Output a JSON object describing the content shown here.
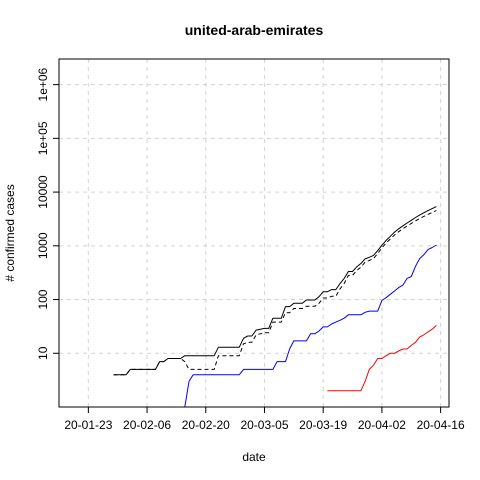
{
  "chart_data": {
    "type": "line",
    "title": "united-arab-emirates",
    "xlabel": "date",
    "ylabel": "# confirmed cases",
    "x_scale": "date",
    "y_scale": "log10",
    "xlim": [
      "2020-01-16",
      "2020-04-18"
    ],
    "ylim": [
      1,
      3000000
    ],
    "grid": true,
    "legend": null,
    "x_ticks": [
      "20-01-23",
      "20-02-06",
      "20-02-20",
      "20-03-05",
      "20-03-19",
      "20-04-02",
      "20-04-16"
    ],
    "y_ticks": [
      "10",
      "100",
      "1000",
      "10000",
      "1e+05",
      "1e+06"
    ],
    "series": [
      {
        "color": "#000000",
        "dash": "solid",
        "points": [
          [
            "2020-01-29",
            4
          ],
          [
            "2020-02-01",
            4
          ],
          [
            "2020-02-02",
            5
          ],
          [
            "2020-02-08",
            5
          ],
          [
            "2020-02-09",
            7
          ],
          [
            "2020-02-10",
            7
          ],
          [
            "2020-02-11",
            8
          ],
          [
            "2020-02-14",
            8
          ],
          [
            "2020-02-15",
            9
          ],
          [
            "2020-02-22",
            9
          ],
          [
            "2020-02-23",
            13
          ],
          [
            "2020-02-28",
            13
          ],
          [
            "2020-02-29",
            19
          ],
          [
            "2020-03-01",
            21
          ],
          [
            "2020-03-02",
            21
          ],
          [
            "2020-03-03",
            27
          ],
          [
            "2020-03-04",
            28
          ],
          [
            "2020-03-05",
            29
          ],
          [
            "2020-03-06",
            29
          ],
          [
            "2020-03-07",
            45
          ],
          [
            "2020-03-08",
            45
          ],
          [
            "2020-03-09",
            45
          ],
          [
            "2020-03-10",
            74
          ],
          [
            "2020-03-11",
            74
          ],
          [
            "2020-03-12",
            85
          ],
          [
            "2020-03-13",
            85
          ],
          [
            "2020-03-14",
            85
          ],
          [
            "2020-03-15",
            98
          ],
          [
            "2020-03-16",
            98
          ],
          [
            "2020-03-17",
            98
          ],
          [
            "2020-03-18",
            113
          ],
          [
            "2020-03-19",
            140
          ],
          [
            "2020-03-20",
            140
          ],
          [
            "2020-03-21",
            153
          ],
          [
            "2020-03-22",
            153
          ],
          [
            "2020-03-23",
            198
          ],
          [
            "2020-03-24",
            248
          ],
          [
            "2020-03-25",
            333
          ],
          [
            "2020-03-26",
            333
          ],
          [
            "2020-03-27",
            405
          ],
          [
            "2020-03-28",
            468
          ],
          [
            "2020-03-29",
            570
          ],
          [
            "2020-03-30",
            611
          ],
          [
            "2020-03-31",
            664
          ],
          [
            "2020-04-01",
            814
          ],
          [
            "2020-04-02",
            1024
          ],
          [
            "2020-04-03",
            1264
          ],
          [
            "2020-04-04",
            1505
          ],
          [
            "2020-04-05",
            1799
          ],
          [
            "2020-04-06",
            2076
          ],
          [
            "2020-04-07",
            2359
          ],
          [
            "2020-04-08",
            2659
          ],
          [
            "2020-04-09",
            2990
          ],
          [
            "2020-04-10",
            3360
          ],
          [
            "2020-04-11",
            3736
          ],
          [
            "2020-04-12",
            4123
          ],
          [
            "2020-04-13",
            4521
          ],
          [
            "2020-04-14",
            4933
          ],
          [
            "2020-04-15",
            5365
          ]
        ]
      },
      {
        "color": "#000000",
        "dash": "dashed",
        "points": [
          [
            "2020-01-29",
            4
          ],
          [
            "2020-02-01",
            4
          ],
          [
            "2020-02-02",
            5
          ],
          [
            "2020-02-08",
            5
          ],
          [
            "2020-02-09",
            7
          ],
          [
            "2020-02-10",
            7
          ],
          [
            "2020-02-11",
            8
          ],
          [
            "2020-02-14",
            8
          ],
          [
            "2020-02-15",
            7
          ],
          [
            "2020-02-16",
            5
          ],
          [
            "2020-02-22",
            5
          ],
          [
            "2020-02-23",
            9
          ],
          [
            "2020-02-28",
            9
          ],
          [
            "2020-02-29",
            15
          ],
          [
            "2020-03-01",
            16
          ],
          [
            "2020-03-02",
            16
          ],
          [
            "2020-03-03",
            22
          ],
          [
            "2020-03-04",
            23
          ],
          [
            "2020-03-05",
            24
          ],
          [
            "2020-03-06",
            24
          ],
          [
            "2020-03-07",
            38
          ],
          [
            "2020-03-08",
            38
          ],
          [
            "2020-03-09",
            38
          ],
          [
            "2020-03-10",
            57
          ],
          [
            "2020-03-11",
            57
          ],
          [
            "2020-03-12",
            68
          ],
          [
            "2020-03-13",
            68
          ],
          [
            "2020-03-14",
            68
          ],
          [
            "2020-03-15",
            75
          ],
          [
            "2020-03-16",
            75
          ],
          [
            "2020-03-17",
            75
          ],
          [
            "2020-03-18",
            85
          ],
          [
            "2020-03-19",
            107
          ],
          [
            "2020-03-20",
            107
          ],
          [
            "2020-03-21",
            115
          ],
          [
            "2020-03-22",
            115
          ],
          [
            "2020-03-23",
            158
          ],
          [
            "2020-03-24",
            200
          ],
          [
            "2020-03-25",
            281
          ],
          [
            "2020-03-26",
            281
          ],
          [
            "2020-03-27",
            345
          ],
          [
            "2020-03-28",
            402
          ],
          [
            "2020-03-29",
            495
          ],
          [
            "2020-03-30",
            535
          ],
          [
            "2020-03-31",
            580
          ],
          [
            "2020-04-01",
            720
          ],
          [
            "2020-04-02",
            910
          ],
          [
            "2020-04-03",
            1130
          ],
          [
            "2020-04-04",
            1340
          ],
          [
            "2020-04-05",
            1590
          ],
          [
            "2020-04-06",
            1830
          ],
          [
            "2020-04-07",
            2080
          ],
          [
            "2020-04-08",
            2330
          ],
          [
            "2020-04-09",
            2610
          ],
          [
            "2020-04-10",
            2910
          ],
          [
            "2020-04-11",
            3220
          ],
          [
            "2020-04-12",
            3530
          ],
          [
            "2020-04-13",
            3850
          ],
          [
            "2020-04-14",
            4180
          ],
          [
            "2020-04-15",
            4520
          ]
        ]
      },
      {
        "color": "#0000ff",
        "dash": "solid",
        "points": [
          [
            "2020-02-13",
            1
          ],
          [
            "2020-02-15",
            1
          ],
          [
            "2020-02-16",
            3
          ],
          [
            "2020-02-17",
            4
          ],
          [
            "2020-02-28",
            4
          ],
          [
            "2020-02-29",
            5
          ],
          [
            "2020-03-07",
            5
          ],
          [
            "2020-03-08",
            7
          ],
          [
            "2020-03-10",
            7
          ],
          [
            "2020-03-11",
            12
          ],
          [
            "2020-03-12",
            17
          ],
          [
            "2020-03-15",
            17
          ],
          [
            "2020-03-16",
            23
          ],
          [
            "2020-03-17",
            23
          ],
          [
            "2020-03-18",
            26
          ],
          [
            "2020-03-19",
            31
          ],
          [
            "2020-03-20",
            31
          ],
          [
            "2020-03-21",
            35
          ],
          [
            "2020-03-22",
            38
          ],
          [
            "2020-03-23",
            41
          ],
          [
            "2020-03-24",
            45
          ],
          [
            "2020-03-25",
            52
          ],
          [
            "2020-03-28",
            52
          ],
          [
            "2020-03-29",
            58
          ],
          [
            "2020-03-30",
            61
          ],
          [
            "2020-03-31",
            61
          ],
          [
            "2020-04-01",
            61
          ],
          [
            "2020-04-02",
            96
          ],
          [
            "2020-04-03",
            108
          ],
          [
            "2020-04-04",
            125
          ],
          [
            "2020-04-05",
            144
          ],
          [
            "2020-04-06",
            167
          ],
          [
            "2020-04-07",
            186
          ],
          [
            "2020-04-08",
            248
          ],
          [
            "2020-04-09",
            268
          ],
          [
            "2020-04-10",
            416
          ],
          [
            "2020-04-11",
            577
          ],
          [
            "2020-04-12",
            680
          ],
          [
            "2020-04-13",
            852
          ],
          [
            "2020-04-14",
            931
          ],
          [
            "2020-04-15",
            1034
          ]
        ]
      },
      {
        "color": "#ff0000",
        "dash": "solid",
        "points": [
          [
            "2020-03-20",
            2
          ],
          [
            "2020-03-28",
            2
          ],
          [
            "2020-03-29",
            3
          ],
          [
            "2020-03-30",
            5
          ],
          [
            "2020-03-31",
            6
          ],
          [
            "2020-04-01",
            8
          ],
          [
            "2020-04-02",
            8
          ],
          [
            "2020-04-03",
            9
          ],
          [
            "2020-04-04",
            10
          ],
          [
            "2020-04-05",
            10
          ],
          [
            "2020-04-06",
            11
          ],
          [
            "2020-04-07",
            12
          ],
          [
            "2020-04-08",
            12
          ],
          [
            "2020-04-09",
            14
          ],
          [
            "2020-04-10",
            16
          ],
          [
            "2020-04-11",
            20
          ],
          [
            "2020-04-12",
            22
          ],
          [
            "2020-04-13",
            25
          ],
          [
            "2020-04-14",
            28
          ],
          [
            "2020-04-15",
            33
          ]
        ]
      }
    ]
  }
}
